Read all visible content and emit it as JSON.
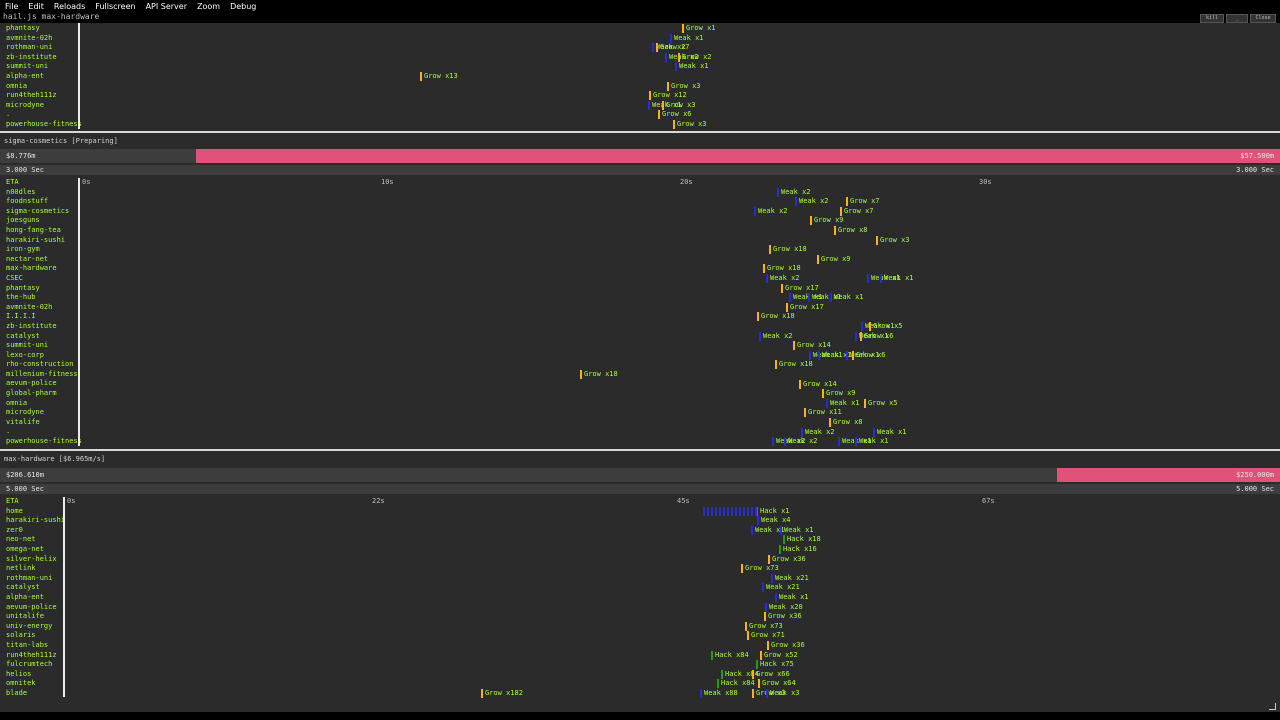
{
  "menu": [
    "File",
    "Edit",
    "Reloads",
    "Fullscreen",
    "API Server",
    "Zoom",
    "Debug"
  ],
  "window": {
    "title": "hail.js max-hardware",
    "btn_a": "kill",
    "btn_b": "_",
    "btn_c": "Close"
  },
  "panel1": {
    "hosts": [
      "phantasy",
      "avmnite-02h",
      "rothman-uni",
      "zb-institute",
      "summit-uni",
      "alpha-ent",
      "omnia",
      "run4theh111z",
      "microdyne",
      ".",
      "powerhouse-fitness"
    ],
    "jobs": [
      {
        "x": 682,
        "row": 0,
        "t": "grow",
        "label": "Grow x1"
      },
      {
        "x": 670,
        "row": 1,
        "t": "weak",
        "label": "Weak x1"
      },
      {
        "x": 652,
        "row": 2,
        "t": "weak",
        "label": "Weak x2"
      },
      {
        "x": 656,
        "row": 2,
        "t": "grow",
        "label": "Grow x7"
      },
      {
        "x": 665,
        "row": 3,
        "t": "weak",
        "label": "Weak x2"
      },
      {
        "x": 678,
        "row": 3,
        "t": "grow",
        "label": "Grow x2"
      },
      {
        "x": 675,
        "row": 4,
        "t": "weak",
        "label": "Weak x1"
      },
      {
        "x": 420,
        "row": 5,
        "t": "grow",
        "label": "Grow x13"
      },
      {
        "x": 667,
        "row": 6,
        "t": "grow",
        "label": "Grow x3"
      },
      {
        "x": 649,
        "row": 7,
        "t": "grow",
        "label": "Grow x12"
      },
      {
        "x": 648,
        "row": 8,
        "t": "weak",
        "label": "Weak x1"
      },
      {
        "x": 662,
        "row": 8,
        "t": "grow",
        "label": "Grow x3"
      },
      {
        "x": 658,
        "row": 9,
        "t": "grow",
        "label": "Grow x6"
      },
      {
        "x": 673,
        "row": 10,
        "t": "grow",
        "label": "Grow x3"
      }
    ]
  },
  "panel2": {
    "title": "sigma-cosmetics [Preparing]",
    "money_left": "$8.776m",
    "money_right": "$57.500m",
    "money_fraction": 0.153,
    "sec_left": "3.000 Sec",
    "sec_right": "3.000 Sec",
    "ticks": [
      "0s",
      "10s",
      "20s",
      "30s"
    ],
    "hosts": [
      "ETA",
      "n00dles",
      "foodnstuff",
      "sigma-cosmetics",
      "joesguns",
      "hong-fang-tea",
      "harakiri-sushi",
      "iron-gym",
      "nectar-net",
      "max-hardware",
      "CSEC",
      "phantasy",
      "the-hub",
      "avmnite-02h",
      "I.I.I.I",
      "zb-institute",
      "catalyst",
      "summit-uni",
      "lexo-corp",
      "rho-construction",
      "millenium-fitness",
      "aevum-police",
      "global-pharm",
      "omnia",
      "microdyne",
      "vitalife",
      ".",
      "powerhouse-fitness"
    ],
    "jobs": [
      {
        "x": 777,
        "row": 1,
        "t": "weak",
        "label": "Weak x2"
      },
      {
        "x": 795,
        "row": 2,
        "t": "weak",
        "label": "Weak x2"
      },
      {
        "x": 846,
        "row": 2,
        "t": "grow",
        "label": "Grow x7"
      },
      {
        "x": 754,
        "row": 3,
        "t": "weak",
        "label": "Weak x2"
      },
      {
        "x": 840,
        "row": 3,
        "t": "grow",
        "label": "Grow x7"
      },
      {
        "x": 810,
        "row": 4,
        "t": "grow",
        "label": "Grow x9"
      },
      {
        "x": 834,
        "row": 5,
        "t": "grow",
        "label": "Grow x8"
      },
      {
        "x": 876,
        "row": 6,
        "t": "grow",
        "label": "Grow x3"
      },
      {
        "x": 769,
        "row": 7,
        "t": "grow",
        "label": "Grow x18"
      },
      {
        "x": 817,
        "row": 8,
        "t": "grow",
        "label": "Grow x9"
      },
      {
        "x": 763,
        "row": 9,
        "t": "grow",
        "label": "Grow x18"
      },
      {
        "x": 766,
        "row": 10,
        "t": "weak",
        "label": "Weak x2"
      },
      {
        "x": 867,
        "row": 10,
        "t": "weak",
        "label": "Weak x1"
      },
      {
        "x": 880,
        "row": 10,
        "t": "weak",
        "label": "Weak x1"
      },
      {
        "x": 781,
        "row": 11,
        "t": "grow",
        "label": "Grow x17"
      },
      {
        "x": 789,
        "row": 12,
        "t": "weak",
        "label": "Weak x1"
      },
      {
        "x": 808,
        "row": 12,
        "t": "weak",
        "label": "Weak x1"
      },
      {
        "x": 830,
        "row": 12,
        "t": "weak",
        "label": "Weak x1"
      },
      {
        "x": 786,
        "row": 13,
        "t": "grow",
        "label": "Grow x17"
      },
      {
        "x": 757,
        "row": 14,
        "t": "grow",
        "label": "Grow x18"
      },
      {
        "x": 861,
        "row": 15,
        "t": "weak",
        "label": "Weak x1"
      },
      {
        "x": 869,
        "row": 15,
        "t": "grow",
        "label": "Grow x5"
      },
      {
        "x": 759,
        "row": 16,
        "t": "weak",
        "label": "Weak x2"
      },
      {
        "x": 855,
        "row": 16,
        "t": "weak",
        "label": "Weak x1"
      },
      {
        "x": 860,
        "row": 16,
        "t": "grow",
        "label": "Grow x6"
      },
      {
        "x": 793,
        "row": 17,
        "t": "grow",
        "label": "Grow x14"
      },
      {
        "x": 809,
        "row": 18,
        "t": "weak",
        "label": "Weak x1"
      },
      {
        "x": 818,
        "row": 18,
        "t": "weak",
        "label": "Weak x1"
      },
      {
        "x": 846,
        "row": 18,
        "t": "weak",
        "label": "Weak x1"
      },
      {
        "x": 852,
        "row": 18,
        "t": "grow",
        "label": "Grow x6"
      },
      {
        "x": 775,
        "row": 19,
        "t": "grow",
        "label": "Grow x18"
      },
      {
        "x": 580,
        "row": 20,
        "t": "grow",
        "label": "Grow x18"
      },
      {
        "x": 799,
        "row": 21,
        "t": "grow",
        "label": "Grow x14"
      },
      {
        "x": 822,
        "row": 22,
        "t": "grow",
        "label": "Grow x9"
      },
      {
        "x": 826,
        "row": 23,
        "t": "weak",
        "label": "Weak x1"
      },
      {
        "x": 864,
        "row": 23,
        "t": "grow",
        "label": "Grow x5"
      },
      {
        "x": 804,
        "row": 24,
        "t": "grow",
        "label": "Grow x11"
      },
      {
        "x": 829,
        "row": 25,
        "t": "grow",
        "label": "Grow x8"
      },
      {
        "x": 801,
        "row": 26,
        "t": "weak",
        "label": "Weak x2"
      },
      {
        "x": 873,
        "row": 26,
        "t": "weak",
        "label": "Weak x1"
      },
      {
        "x": 772,
        "row": 27,
        "t": "weak",
        "label": "Weak x2"
      },
      {
        "x": 784,
        "row": 27,
        "t": "weak",
        "label": "Weak x2"
      },
      {
        "x": 838,
        "row": 27,
        "t": "weak",
        "label": "Weak x1"
      },
      {
        "x": 855,
        "row": 27,
        "t": "weak",
        "label": "Weak x1"
      }
    ]
  },
  "panel3": {
    "title": "max-hardware [$6.965m/s]",
    "money_left": "$206.610m",
    "money_right": "$250.000m",
    "money_fraction": 0.826,
    "sec_left": "5.000 Sec",
    "sec_right": "5.000 Sec",
    "ticks": [
      "0s",
      "22s",
      "45s",
      "67s"
    ],
    "hosts": [
      "ETA",
      "home",
      "harakiri-sushi",
      "zer0",
      "neo-net",
      "omega-net",
      "silver-helix",
      "netlink",
      "rothman-uni",
      "catalyst",
      "alpha-ent",
      "aevum-police",
      "unitalife",
      "univ-energy",
      "solaris",
      "titan-labs",
      "run4theh111z",
      "fulcrumtech",
      "helios",
      "omnitek",
      "blade"
    ],
    "jobs": [
      {
        "x": 756,
        "row": 1,
        "t": "hack",
        "label": "Hack x1"
      },
      {
        "x": 757,
        "row": 2,
        "t": "weak",
        "label": "Weak x4"
      },
      {
        "x": 751,
        "row": 3,
        "t": "weak",
        "label": "Weak x1"
      },
      {
        "x": 780,
        "row": 3,
        "t": "weak",
        "label": "Weak x1"
      },
      {
        "x": 783,
        "row": 4,
        "t": "hack",
        "label": "Hack x18"
      },
      {
        "x": 779,
        "row": 5,
        "t": "hack",
        "label": "Hack x16"
      },
      {
        "x": 768,
        "row": 6,
        "t": "grow",
        "label": "Grow x36"
      },
      {
        "x": 741,
        "row": 7,
        "t": "grow",
        "label": "Grow x73"
      },
      {
        "x": 771,
        "row": 8,
        "t": "weak",
        "label": "Weak x21"
      },
      {
        "x": 762,
        "row": 9,
        "t": "weak",
        "label": "Weak x21"
      },
      {
        "x": 775,
        "row": 10,
        "t": "weak",
        "label": "Weak x1"
      },
      {
        "x": 765,
        "row": 11,
        "t": "weak",
        "label": "Weak x20"
      },
      {
        "x": 764,
        "row": 12,
        "t": "grow",
        "label": "Grow x36"
      },
      {
        "x": 745,
        "row": 13,
        "t": "grow",
        "label": "Grow x73"
      },
      {
        "x": 747,
        "row": 14,
        "t": "grow",
        "label": "Grow x71"
      },
      {
        "x": 767,
        "row": 15,
        "t": "grow",
        "label": "Grow x36"
      },
      {
        "x": 711,
        "row": 16,
        "t": "hack",
        "label": "Hack x84"
      },
      {
        "x": 760,
        "row": 16,
        "t": "grow",
        "label": "Grow x52"
      },
      {
        "x": 756,
        "row": 17,
        "t": "hack",
        "label": "Hack x75"
      },
      {
        "x": 721,
        "row": 18,
        "t": "hack",
        "label": "Hack x84"
      },
      {
        "x": 752,
        "row": 18,
        "t": "grow",
        "label": "Grow x66"
      },
      {
        "x": 717,
        "row": 19,
        "t": "hack",
        "label": "Hack x84"
      },
      {
        "x": 758,
        "row": 19,
        "t": "grow",
        "label": "Grow x64"
      },
      {
        "x": 481,
        "row": 20,
        "t": "grow",
        "label": "Grow x182"
      },
      {
        "x": 700,
        "row": 20,
        "t": "weak",
        "label": "Weak x88"
      },
      {
        "x": 752,
        "row": 20,
        "t": "grow",
        "label": "Grow x3"
      },
      {
        "x": 766,
        "row": 20,
        "t": "weak",
        "label": "Weak x3"
      }
    ]
  }
}
